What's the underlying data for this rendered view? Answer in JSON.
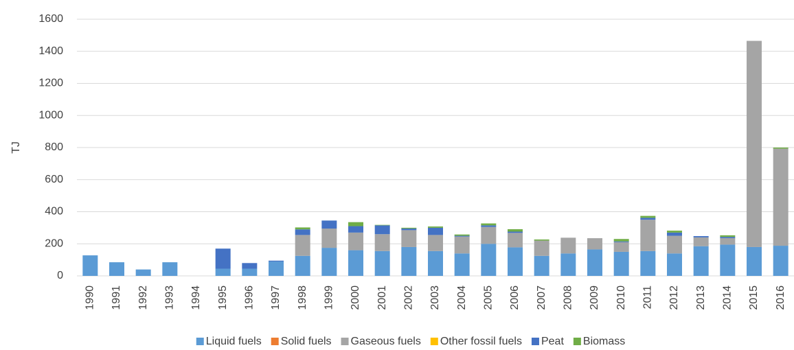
{
  "chart_data": {
    "type": "bar",
    "stacked": true,
    "y_label": "TJ",
    "categories": [
      "1990",
      "1991",
      "1992",
      "1993",
      "1994",
      "1995",
      "1996",
      "1997",
      "1998",
      "1999",
      "2000",
      "2001",
      "2002",
      "2003",
      "2004",
      "2005",
      "2006",
      "2007",
      "2008",
      "2009",
      "2010",
      "2011",
      "2012",
      "2013",
      "2014",
      "2015",
      "2016"
    ],
    "series": [
      {
        "name": "Liquid fuels",
        "color": "#5b9bd5",
        "values": [
          128,
          85,
          40,
          85,
          0,
          45,
          45,
          90,
          125,
          175,
          160,
          155,
          180,
          155,
          140,
          200,
          178,
          125,
          140,
          165,
          150,
          155,
          140,
          185,
          195,
          180,
          188
        ]
      },
      {
        "name": "Solid fuels",
        "color": "#ed7d31",
        "values": [
          0,
          0,
          0,
          0,
          0,
          0,
          0,
          0,
          0,
          0,
          0,
          0,
          0,
          0,
          0,
          0,
          0,
          0,
          0,
          0,
          0,
          0,
          0,
          0,
          0,
          0,
          0
        ]
      },
      {
        "name": "Gaseous fuels",
        "color": "#a5a5a5",
        "values": [
          0,
          0,
          0,
          0,
          0,
          0,
          0,
          0,
          130,
          120,
          110,
          105,
          105,
          100,
          105,
          105,
          90,
          95,
          98,
          70,
          60,
          195,
          110,
          55,
          40,
          1285,
          605
        ]
      },
      {
        "name": "Other fossil fuels",
        "color": "#ffc000",
        "values": [
          0,
          0,
          0,
          0,
          0,
          0,
          0,
          0,
          0,
          0,
          0,
          0,
          0,
          0,
          0,
          0,
          0,
          0,
          0,
          0,
          0,
          0,
          0,
          0,
          0,
          0,
          0
        ]
      },
      {
        "name": "Peat",
        "color": "#4472c4",
        "values": [
          0,
          0,
          0,
          0,
          0,
          125,
          35,
          5,
          35,
          50,
          40,
          55,
          10,
          45,
          5,
          10,
          8,
          0,
          0,
          0,
          5,
          12,
          20,
          8,
          8,
          0,
          0
        ]
      },
      {
        "name": "Biomass",
        "color": "#70ad47",
        "values": [
          0,
          0,
          0,
          0,
          0,
          0,
          0,
          0,
          12,
          0,
          25,
          3,
          5,
          8,
          8,
          12,
          15,
          7,
          0,
          0,
          15,
          12,
          12,
          0,
          10,
          0,
          7
        ]
      }
    ],
    "ylim": [
      0,
      1600
    ],
    "yticks": [
      0,
      200,
      400,
      600,
      800,
      1000,
      1200,
      1400,
      1600
    ],
    "grid": true,
    "legend": "bottom"
  }
}
